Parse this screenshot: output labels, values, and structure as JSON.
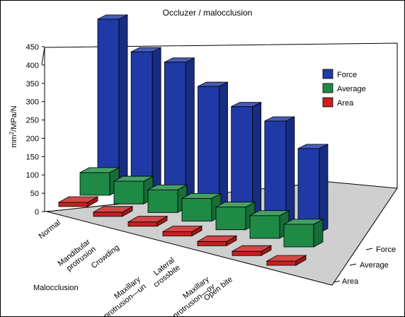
{
  "chart_data": {
    "type": "bar",
    "title": "Occluzer / malocclusion",
    "xlabel": "Malocclusion",
    "ylabel_base": "mm",
    "ylabel_sup": "2",
    "ylabel_rest": "/MPa/N",
    "ylim": [
      0,
      450
    ],
    "yticks": [
      0,
      50,
      100,
      150,
      200,
      250,
      300,
      350,
      400,
      450
    ],
    "categories": [
      [
        "Normal"
      ],
      [
        "Mandibular",
        "protrusion"
      ],
      [
        "Crowding"
      ],
      [
        "Maxillary",
        "protrusion—un"
      ],
      [
        "Lateral",
        "crossbite"
      ],
      [
        "Maxillary",
        "protrusion—ov"
      ],
      [
        "Open bite"
      ]
    ],
    "series": [
      {
        "name": "Force",
        "color": "#1f3aa6",
        "values": [
          450,
          383,
          377,
          333,
          300,
          283,
          230
        ]
      },
      {
        "name": "Average",
        "color": "#1e8a46",
        "values": [
          62,
          62,
          62,
          62,
          62,
          62,
          62
        ]
      },
      {
        "name": "Area",
        "color": "#cc1f1f",
        "values": [
          3,
          3,
          3,
          3,
          3,
          3,
          3
        ]
      }
    ],
    "depth_labels": [
      "Force",
      "Average",
      "Area"
    ],
    "legend_position": "top-right",
    "grid": false
  }
}
